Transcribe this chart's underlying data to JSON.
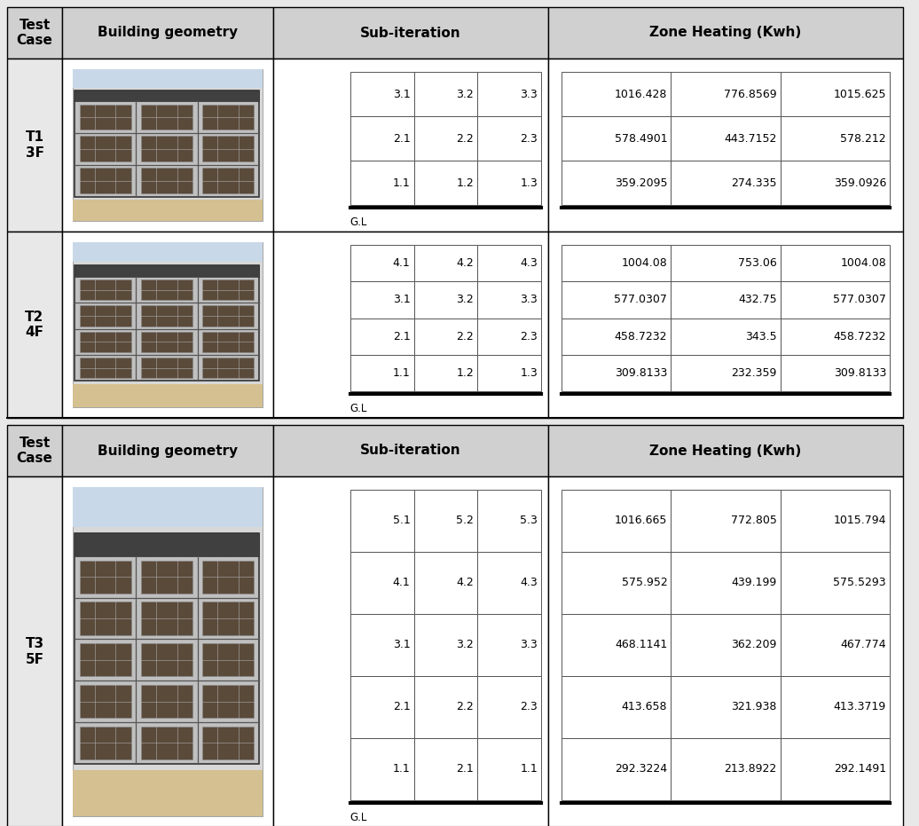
{
  "bg_color": "#e8e8e8",
  "header_bg": "#d0d0d0",
  "sections_block1": [
    {
      "test_case": "T1\n3F",
      "n_floors": 3,
      "sub_iter_rows": [
        [
          "3.1",
          "3.2",
          "3.3"
        ],
        [
          "2.1",
          "2.2",
          "2.3"
        ],
        [
          "1.1",
          "1.2",
          "1.3"
        ]
      ],
      "heat_rows": [
        [
          "1016.428",
          "776.8569",
          "1015.625"
        ],
        [
          "578.4901",
          "443.7152",
          "578.212"
        ],
        [
          "359.2095",
          "274.335",
          "359.0926"
        ]
      ]
    },
    {
      "test_case": "T2\n4F",
      "n_floors": 4,
      "sub_iter_rows": [
        [
          "4.1",
          "4.2",
          "4.3"
        ],
        [
          "3.1",
          "3.2",
          "3.3"
        ],
        [
          "2.1",
          "2.2",
          "2.3"
        ],
        [
          "1.1",
          "1.2",
          "1.3"
        ]
      ],
      "heat_rows": [
        [
          "1004.08",
          "753.06",
          "1004.08"
        ],
        [
          "577.0307",
          "432.75",
          "577.0307"
        ],
        [
          "458.7232",
          "343.5",
          "458.7232"
        ],
        [
          "309.8133",
          "232.359",
          "309.8133"
        ]
      ]
    }
  ],
  "sections_block2": [
    {
      "test_case": "T3\n5F",
      "n_floors": 5,
      "sub_iter_rows": [
        [
          "5.1",
          "5.2",
          "5.3"
        ],
        [
          "4.1",
          "4.2",
          "4.3"
        ],
        [
          "3.1",
          "3.2",
          "3.3"
        ],
        [
          "2.1",
          "2.2",
          "2.3"
        ],
        [
          "1.1",
          "2.1",
          "1.1"
        ]
      ],
      "heat_rows": [
        [
          "1016.665",
          "772.805",
          "1015.794"
        ],
        [
          "575.952",
          "439.199",
          "575.5293"
        ],
        [
          "468.1141",
          "362.209",
          "467.774"
        ],
        [
          "413.658",
          "321.938",
          "413.3719"
        ],
        [
          "292.3224",
          "213.8922",
          "292.1491"
        ]
      ]
    }
  ],
  "col_headers": [
    "Test\nCase",
    "Building geometry",
    "Sub-iteration",
    "Zone Heating (Kwh)"
  ],
  "data_font_size": 9,
  "header_font_size": 11
}
